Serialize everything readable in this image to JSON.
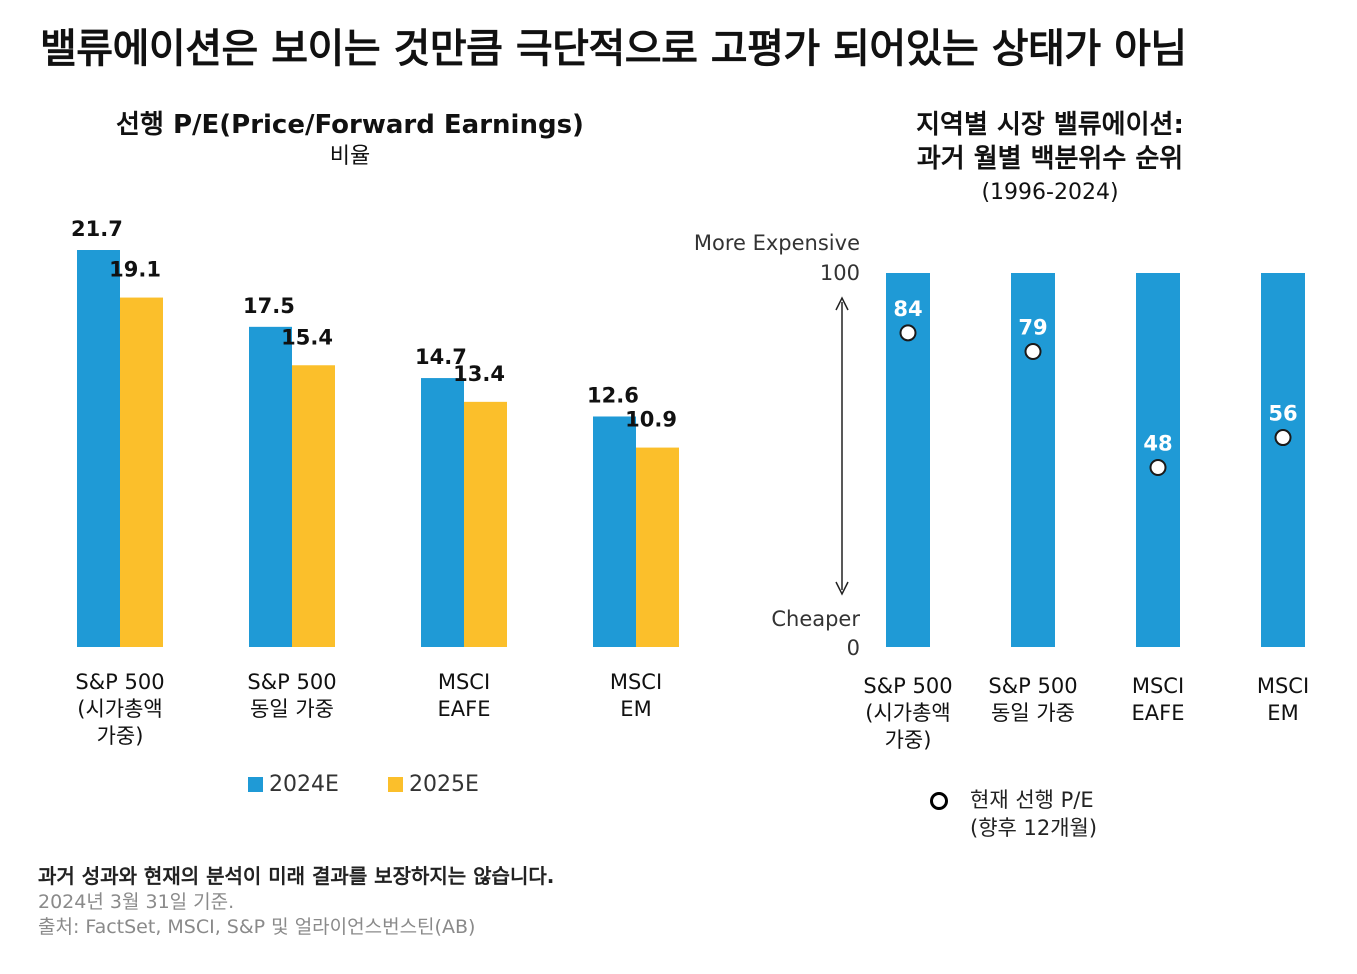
{
  "headline": "밸류에이션은 보이는 것만큼 극단적으로 고평가 되어있는 상태가 아님",
  "chart_data": [
    {
      "type": "bar",
      "title": "선행 P/E(Price/Forward Earnings)",
      "subtitle": "비율",
      "categories": [
        "S&P 500 (시가총액 가중)",
        "S&P 500 동일 가중",
        "MSCI EAFE",
        "MSCI EM"
      ],
      "category_lines": [
        [
          "S&P 500",
          "(시가총액",
          "가중)"
        ],
        [
          "S&P 500",
          "동일 가중"
        ],
        [
          "MSCI",
          "EAFE"
        ],
        [
          "MSCI",
          "EM"
        ]
      ],
      "series": [
        {
          "name": "2024E",
          "values": [
            21.7,
            17.5,
            14.7,
            12.6
          ],
          "labels": [
            "21.7",
            "17.5",
            "14.7",
            "12.6"
          ],
          "color": "#1f9ad6"
        },
        {
          "name": "2025E",
          "values": [
            19.1,
            15.4,
            13.4,
            10.9
          ],
          "labels": [
            "19.1",
            "15.4",
            "13.4",
            "10.9"
          ],
          "color": "#fbbf2b"
        }
      ],
      "ylim": [
        0,
        21.7
      ],
      "grid": false,
      "legend": "bottom"
    },
    {
      "type": "bar",
      "title_lines": [
        "지역별 시장 밸류에이션:",
        "과거 월별 백분위수 순위"
      ],
      "subtitle": "(1996-2024)",
      "categories": [
        "S&P 500 (시가총액 가중)",
        "S&P 500 동일 가중",
        "MSCI EAFE",
        "MSCI EM"
      ],
      "category_lines": [
        [
          "S&P 500",
          "(시가총액",
          "가중)"
        ],
        [
          "S&P 500",
          "동일 가중"
        ],
        [
          "MSCI",
          "EAFE"
        ],
        [
          "MSCI",
          "EM"
        ]
      ],
      "range": [
        0,
        100
      ],
      "range_labels": [
        "0",
        "100"
      ],
      "top_label": "More Expensive",
      "bottom_label": "Cheaper",
      "bar_color": "#1f9ad6",
      "series": [
        {
          "name": "현재 선행 P/E (향후 12개월)",
          "values": [
            84,
            79,
            48,
            56
          ],
          "labels": [
            "84",
            "79",
            "48",
            "56"
          ]
        }
      ],
      "grid": false,
      "legend": "bottom",
      "legend_lines": [
        "현재 선행 P/E",
        "(향후 12개월)"
      ]
    }
  ],
  "footer": {
    "note": "과거 성과와 현재의 분석이 미래 결과를 보장하지는 않습니다.",
    "date": "2024년 3월 31일 기준.",
    "source": "출처: FactSet, MSCI, S&P 및 얼라이언스번스틴(AB)"
  }
}
